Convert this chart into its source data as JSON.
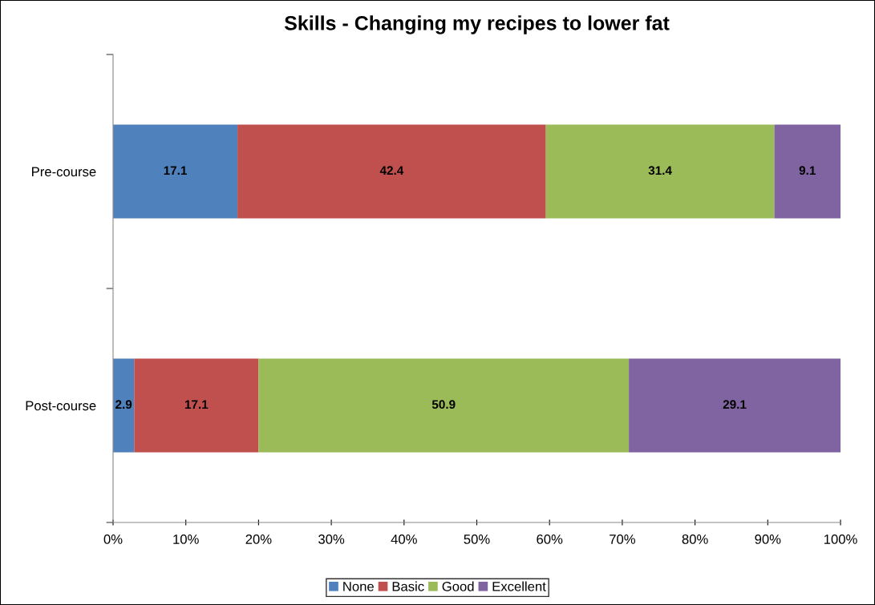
{
  "chart_data": {
    "type": "bar",
    "orientation": "horizontal",
    "stacked": true,
    "title": "Skills - Changing my recipes to lower fat",
    "categories": [
      "Pre-course",
      "Post-course"
    ],
    "series": [
      {
        "name": "None",
        "color": "#4f81bd",
        "values": [
          17.1,
          2.9
        ]
      },
      {
        "name": "Basic",
        "color": "#c0504d",
        "values": [
          42.4,
          17.1
        ]
      },
      {
        "name": "Good",
        "color": "#9bbb59",
        "values": [
          31.4,
          50.9
        ]
      },
      {
        "name": "Excellent",
        "color": "#8064a2",
        "values": [
          9.1,
          29.1
        ]
      }
    ],
    "xlim": [
      0,
      100
    ],
    "xticks": [
      {
        "value": 0,
        "label": "0%"
      },
      {
        "value": 10,
        "label": "10%"
      },
      {
        "value": 20,
        "label": "20%"
      },
      {
        "value": 30,
        "label": "30%"
      },
      {
        "value": 40,
        "label": "40%"
      },
      {
        "value": 50,
        "label": "50%"
      },
      {
        "value": 60,
        "label": "60%"
      },
      {
        "value": 70,
        "label": "70%"
      },
      {
        "value": 80,
        "label": "80%"
      },
      {
        "value": 90,
        "label": "90%"
      },
      {
        "value": 100,
        "label": "100%"
      }
    ],
    "data_labels": true,
    "grid": false,
    "legend": "bottom"
  }
}
